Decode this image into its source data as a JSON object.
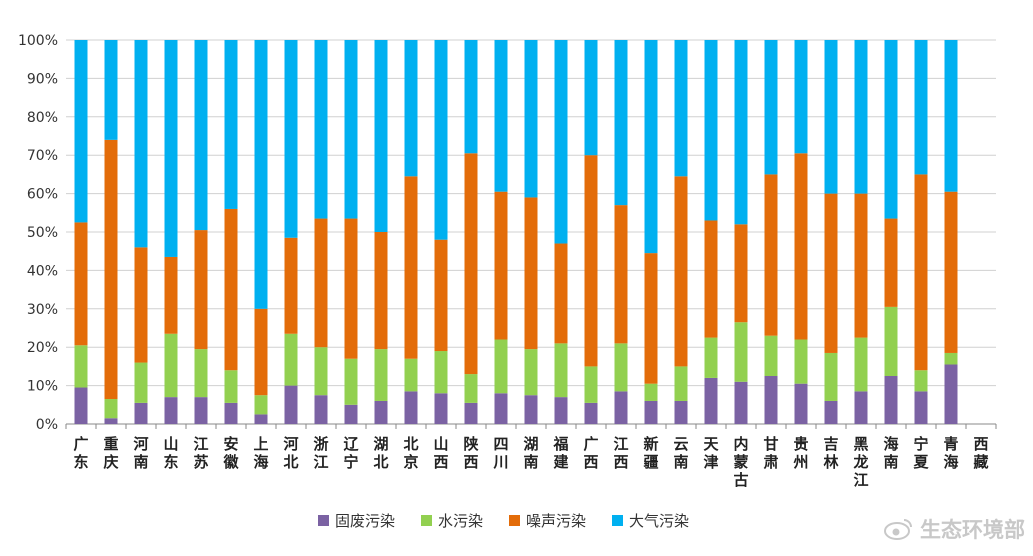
{
  "chart_data": {
    "type": "bar",
    "stacked": true,
    "percent": true,
    "title": "",
    "xlabel": "",
    "ylabel": "",
    "ylim": [
      0,
      100
    ],
    "yticks": [
      "0%",
      "10%",
      "20%",
      "30%",
      "40%",
      "50%",
      "60%",
      "70%",
      "80%",
      "90%",
      "100%"
    ],
    "grid": true,
    "legend_position": "bottom",
    "categories": [
      "广东",
      "重庆",
      "河南",
      "山东",
      "江苏",
      "安徽",
      "上海",
      "河北",
      "浙江",
      "辽宁",
      "湖北",
      "北京",
      "山西",
      "陕西",
      "四川",
      "湖南",
      "福建",
      "广西",
      "江西",
      "新疆",
      "云南",
      "天津",
      "内蒙古",
      "甘肃",
      "贵州",
      "吉林",
      "黑龙江",
      "海南",
      "宁夏",
      "青海",
      "西藏"
    ],
    "series": [
      {
        "name": "固废污染",
        "color": "#7b62a3",
        "values": [
          9.5,
          1.5,
          5.5,
          7,
          7,
          5.5,
          2.5,
          10,
          7.5,
          5,
          6,
          8.5,
          8,
          5.5,
          8,
          7.5,
          7,
          5.5,
          8.5,
          6,
          6,
          12,
          11,
          12.5,
          10.5,
          6,
          8.5,
          12.5,
          8.5,
          15.5,
          0
        ]
      },
      {
        "name": "水污染",
        "color": "#92d050",
        "values": [
          11,
          5,
          10.5,
          16.5,
          12.5,
          8.5,
          5,
          13.5,
          12.5,
          12,
          13.5,
          8.5,
          11,
          7.5,
          14,
          12,
          14,
          9.5,
          12.5,
          4.5,
          9,
          10.5,
          15.5,
          10.5,
          11.5,
          12.5,
          14,
          18,
          5.5,
          3,
          0
        ]
      },
      {
        "name": "噪声污染",
        "color": "#e36c09",
        "values": [
          32,
          67.5,
          30,
          20,
          31,
          42,
          22.5,
          25,
          33.5,
          36.5,
          30.5,
          47.5,
          29,
          57.5,
          38.5,
          39.5,
          26,
          55,
          36,
          34,
          49.5,
          30.5,
          25.5,
          42,
          48.5,
          41.5,
          37.5,
          23,
          51,
          42,
          0
        ]
      },
      {
        "name": "大气污染",
        "color": "#00b0f0",
        "values": [
          47.5,
          26,
          54,
          56.5,
          49.5,
          44,
          70,
          51.5,
          46.5,
          46.5,
          50,
          35.5,
          52,
          29.5,
          39.5,
          41,
          53,
          30,
          43,
          55.5,
          35.5,
          47,
          48,
          35,
          29.5,
          40,
          40,
          46.5,
          35,
          39.5,
          0
        ]
      }
    ]
  },
  "watermark": {
    "text": "生态环境部",
    "icon": "weibo-eye-icon"
  }
}
